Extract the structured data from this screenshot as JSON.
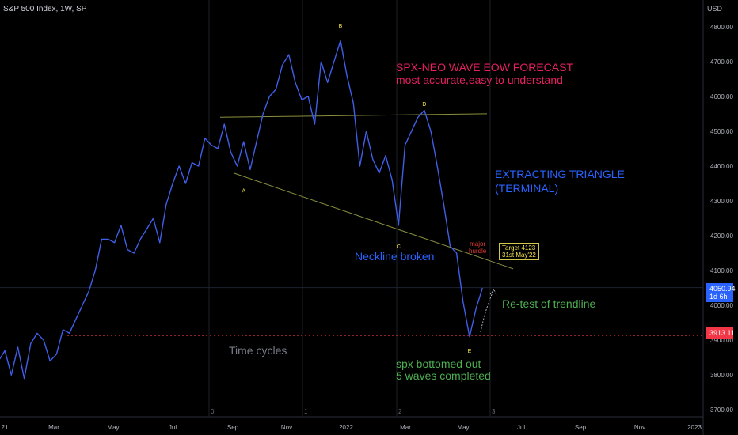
{
  "header": {
    "title": "S&P 500 Index, 1W, SP",
    "currency": "USD"
  },
  "annotations": {
    "forecast_title": "SPX-NEO WAVE EOW FORECAST",
    "forecast_sub": "most accurate,easy to understand",
    "triangle_1": "EXTRACTING TRIANGLE",
    "triangle_2": "(TERMINAL)",
    "neckline": "Neckline broken",
    "retest": "Re-test of trendline",
    "time_cycles": "Time cycles",
    "bottomed_1": "spx  bottomed out",
    "bottomed_2": "5 waves completed",
    "hurdle_1": "major",
    "hurdle_2": "hurdle",
    "target_1": "Target 4123",
    "target_2": "31st May'22",
    "wave_labels": [
      "A",
      "B",
      "C",
      "D",
      "E"
    ],
    "cycle_labels": [
      "0",
      "1",
      "2",
      "3"
    ]
  },
  "price_tags": {
    "current": "4050.94",
    "current_sub": "1d 6h",
    "low": "3913.11"
  },
  "colors": {
    "price_line": "#3f5fe8",
    "trendline": "#8a8f3c",
    "current_tag": "#2962ff",
    "low_tag": "#f23645"
  },
  "chart_data": {
    "type": "line",
    "x_ticks": [
      "21",
      "Mar",
      "May",
      "Jul",
      "Sep",
      "Nov",
      "2022",
      "Mar",
      "May",
      "Jul",
      "Sep",
      "Nov",
      "2023"
    ],
    "y_ticks": [
      3700,
      3800,
      3900,
      4000,
      4100,
      4200,
      4300,
      4400,
      4500,
      4600,
      4700,
      4800
    ],
    "ylim": [
      3680,
      4870
    ],
    "series": [
      {
        "values": [
          3840,
          3870,
          3800,
          3880,
          3790,
          3890,
          3920,
          3900,
          3840,
          3860,
          3930,
          3920,
          3960,
          4000,
          4040,
          4100,
          4190,
          4190,
          4180,
          4230,
          4160,
          4150,
          4190,
          4220,
          4250,
          4180,
          4290,
          4350,
          4400,
          4350,
          4410,
          4400,
          4480,
          4460,
          4450,
          4520,
          4440,
          4400,
          4470,
          4390,
          4470,
          4550,
          4600,
          4620,
          4690,
          4720,
          4640,
          4590,
          4600,
          4520,
          4700,
          4640,
          4700,
          4760,
          4660,
          4580,
          4400,
          4500,
          4420,
          4380,
          4430,
          4360,
          4230,
          4460,
          4500,
          4540,
          4560,
          4500,
          4400,
          4290,
          4170,
          4150,
          4010,
          3910,
          3990,
          4050
        ]
      }
    ],
    "wave_points": [
      {
        "label": "A",
        "index": 38,
        "value": 4360
      },
      {
        "label": "B",
        "index": 53,
        "value": 4770
      },
      {
        "label": "C",
        "index": 62,
        "value": 4200
      },
      {
        "label": "D",
        "index": 66,
        "value": 4545
      },
      {
        "label": "E",
        "index": 73,
        "value": 3900
      }
    ],
    "upper_trendline": {
      "from_value": 4540,
      "to_value": 4550
    },
    "lower_trendline": {
      "from_value": 4380,
      "to_value": 4105
    },
    "support_level": 3913.11,
    "current_value": 4050.94
  }
}
